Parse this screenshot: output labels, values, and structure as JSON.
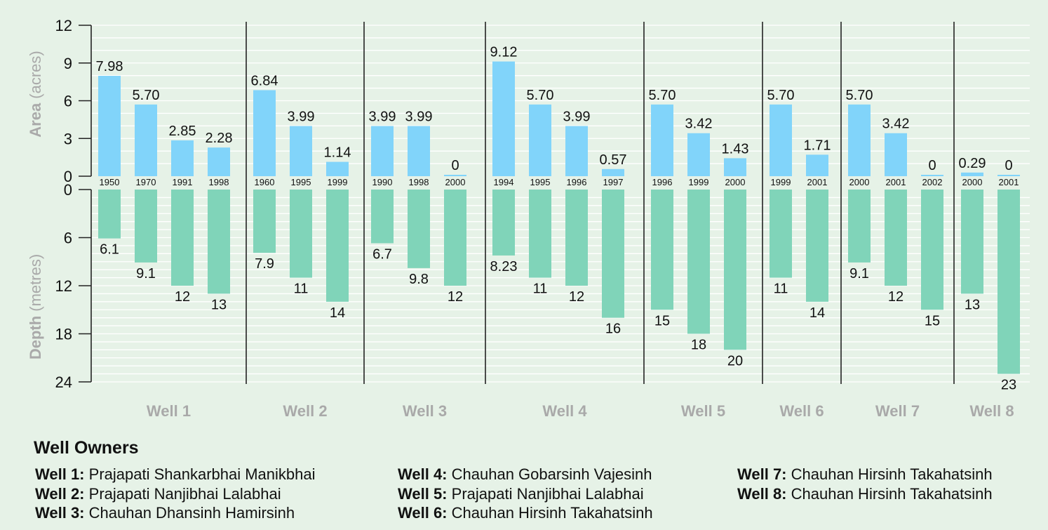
{
  "chart_data": {
    "type": "bar",
    "title": "",
    "top_axis": {
      "label_bold": "Area",
      "label_unit": "(acres)",
      "ylim": [
        0,
        12
      ],
      "ticks": [
        0,
        3,
        6,
        9,
        12
      ]
    },
    "bottom_axis": {
      "label_bold": "Depth",
      "label_unit": "(metres)",
      "ylim": [
        0,
        24
      ],
      "ticks": [
        0,
        6,
        12,
        18,
        24
      ]
    },
    "colors": {
      "area": "#81d4fa",
      "depth": "#80d4b9",
      "axis_label": "#a9a9a9",
      "background": "#e6f2e7"
    },
    "wells": [
      {
        "name": "Well 1",
        "years": [
          "1950",
          "1970",
          "1991",
          "1998"
        ],
        "area": [
          "7.98",
          "5.70",
          "2.85",
          "2.28"
        ],
        "depth": [
          "6.1",
          "9.1",
          "12",
          "13"
        ]
      },
      {
        "name": "Well 2",
        "years": [
          "1960",
          "1995",
          "1999"
        ],
        "area": [
          "6.84",
          "3.99",
          "1.14"
        ],
        "depth": [
          "7.9",
          "11",
          "14"
        ]
      },
      {
        "name": "Well 3",
        "years": [
          "1990",
          "1998",
          "2000"
        ],
        "area": [
          "3.99",
          "3.99",
          "0"
        ],
        "depth": [
          "6.7",
          "9.8",
          "12"
        ]
      },
      {
        "name": "Well 4",
        "years": [
          "1994",
          "1995",
          "1996",
          "1997"
        ],
        "area": [
          "9.12",
          "5.70",
          "3.99",
          "0.57"
        ],
        "depth": [
          "8.23",
          "11",
          "12",
          "16"
        ]
      },
      {
        "name": "Well 5",
        "years": [
          "1996",
          "1999",
          "2000"
        ],
        "area": [
          "5.70",
          "3.42",
          "1.43"
        ],
        "depth": [
          "15",
          "18",
          "20"
        ]
      },
      {
        "name": "Well 6",
        "years": [
          "1999",
          "2001"
        ],
        "area": [
          "5.70",
          "1.71"
        ],
        "depth": [
          "11",
          "14"
        ]
      },
      {
        "name": "Well 7",
        "years": [
          "2000",
          "2001",
          "2002"
        ],
        "area": [
          "5.70",
          "3.42",
          "0"
        ],
        "depth": [
          "9.1",
          "12",
          "15"
        ]
      },
      {
        "name": "Well 8",
        "years": [
          "2000",
          "2001"
        ],
        "area": [
          "0.29",
          "0"
        ],
        "depth": [
          "13",
          "23"
        ]
      }
    ]
  },
  "owners": {
    "title": "Well Owners",
    "items": [
      {
        "label": "Well 1:",
        "name": "Prajapati Shankarbhai Manikbhai"
      },
      {
        "label": "Well 2:",
        "name": "Prajapati Nanjibhai Lalabhai"
      },
      {
        "label": "Well 3:",
        "name": "Chauhan Dhansinh Hamirsinh"
      },
      {
        "label": "Well 4:",
        "name": "Chauhan Gobarsinh Vajesinh"
      },
      {
        "label": "Well 5:",
        "name": "Prajapati Nanjibhai Lalabhai"
      },
      {
        "label": "Well 6:",
        "name": "Chauhan Hirsinh Takahatsinh"
      },
      {
        "label": "Well 7:",
        "name": "Chauhan Hirsinh Takahatsinh"
      },
      {
        "label": "Well 8:",
        "name": "Chauhan Hirsinh Takahatsinh"
      }
    ]
  }
}
